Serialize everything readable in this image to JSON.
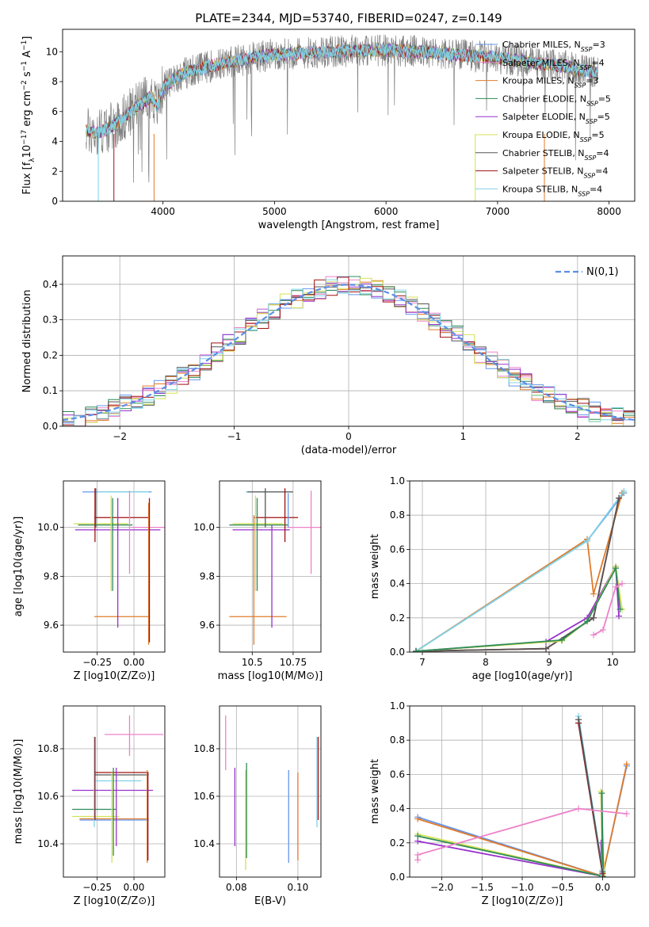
{
  "colors": {
    "chabrier_miles": "#6495ed",
    "salpeter_miles": "#ee82c9",
    "kroupa_miles": "#e07b2a",
    "chabrier_elodie": "#2e8b57",
    "salpeter_elodie": "#9932cc",
    "kroupa_elodie": "#d4e157",
    "chabrier_stelib": "#555555",
    "salpeter_stelib": "#a01010",
    "kroupa_stelib": "#7fd3e6",
    "data": "#7f7f7f",
    "normal": "#5b8fe6"
  },
  "models": [
    {
      "name": "Chabrier MILES",
      "nssp": "3",
      "color_key": "chabrier_miles"
    },
    {
      "name": "Salpeter MILES",
      "nssp": "4",
      "color_key": "salpeter_miles"
    },
    {
      "name": "Kroupa MILES",
      "nssp": "3",
      "color_key": "kroupa_miles"
    },
    {
      "name": "Chabrier ELODIE",
      "nssp": "5",
      "color_key": "chabrier_elodie"
    },
    {
      "name": "Salpeter ELODIE",
      "nssp": "5",
      "color_key": "salpeter_elodie"
    },
    {
      "name": "Kroupa ELODIE",
      "nssp": "5",
      "color_key": "kroupa_elodie"
    },
    {
      "name": "Chabrier STELIB",
      "nssp": "4",
      "color_key": "chabrier_stelib"
    },
    {
      "name": "Salpeter STELIB",
      "nssp": "4",
      "color_key": "salpeter_stelib"
    },
    {
      "name": "Kroupa STELIB",
      "nssp": "4",
      "color_key": "kroupa_stelib"
    }
  ],
  "chart_data": [
    {
      "id": "spectrum",
      "type": "line",
      "title": "PLATE=2344, MJD=53740, FIBERID=0247, z=0.149",
      "xlabel": "wavelength [Angstrom, rest frame]",
      "ylabel": "Flux [f_λ10^-17 erg cm^-2 s^-1 A^-1]",
      "xlim": [
        3100,
        8230
      ],
      "ylim": [
        0,
        11.5
      ],
      "xticks": [
        4000,
        5000,
        6000,
        7000,
        8000
      ],
      "yticks": [
        0,
        2,
        4,
        6,
        8,
        10
      ],
      "legend": "upper-right",
      "continuum": {
        "x": [
          3310,
          3400,
          3500,
          3600,
          3700,
          3800,
          3900,
          3950,
          4000,
          4100,
          4200,
          4400,
          4600,
          4800,
          5000,
          5200,
          5500,
          5800,
          6000,
          6300,
          6600,
          7000,
          7300,
          7600,
          7900
        ],
        "y": [
          4.7,
          4.6,
          4.8,
          5.3,
          5.9,
          6.5,
          7.0,
          6.3,
          7.6,
          8.2,
          8.6,
          9.0,
          9.3,
          9.6,
          9.8,
          9.9,
          10.0,
          10.1,
          10.1,
          10.0,
          9.8,
          9.6,
          9.3,
          9.0,
          8.6
        ]
      }
    },
    {
      "id": "residuals",
      "type": "histogram",
      "xlabel": "(data-model)/error",
      "ylabel": "Normed distribution",
      "xlim": [
        -2.5,
        2.5
      ],
      "ylim": [
        0,
        0.48
      ],
      "xticks": [
        -2,
        -1,
        0,
        1,
        2
      ],
      "yticks": [
        0.0,
        0.1,
        0.2,
        0.3,
        0.4
      ],
      "grid": true,
      "legend": "upper-right",
      "normal_label": "N(0,1)",
      "bin_width": 0.1
    },
    {
      "id": "age_vs_z",
      "type": "errorbar",
      "xlabel": "Z [log10(Z/Z⊙)]",
      "ylabel": "age  [log10(age/yr)]",
      "xlim": [
        -0.48,
        0.21
      ],
      "ylim": [
        9.49,
        10.19
      ],
      "xticks": [
        -0.25,
        0.0
      ],
      "yticks": [
        9.6,
        9.8,
        10.0
      ],
      "grid": true,
      "points": [
        {
          "x": -0.08,
          "xerr": [
            0.27,
            0.2
          ],
          "y": 10.145,
          "yerr": [
            0.0,
            0.0
          ],
          "color_key": "chabrier_miles"
        },
        {
          "x": 0.06,
          "xerr": [
            0.08,
            0.26
          ],
          "y": 10.0,
          "yerr": [
            0.19,
            0.0
          ],
          "color_key": "salpeter_miles"
        },
        {
          "x": -0.1,
          "xerr": [
            0.17,
            0.2
          ],
          "y": 9.635,
          "yerr": [
            0.0,
            0.0
          ],
          "color_key": "kroupa_miles"
        },
        {
          "x": -0.12,
          "xerr": [
            0.26,
            0.11
          ],
          "y": 10.01,
          "yerr": [
            0.0,
            0.0
          ],
          "color_key": "chabrier_elodie"
        },
        {
          "x": -0.15,
          "xerr": [
            0.25,
            0.33
          ],
          "y": 9.99,
          "yerr": [
            0.4,
            0.15
          ],
          "color_key": "salpeter_elodie"
        },
        {
          "x": -0.15,
          "xerr": [
            0.26,
            0.11
          ],
          "y": 10.015,
          "yerr": [
            0.27,
            0.12
          ],
          "color_key": "kroupa_elodie"
        },
        {
          "x": -0.27,
          "xerr": [
            0.0,
            0.0
          ],
          "y": 10.08,
          "yerr": [
            0.14,
            0.07
          ],
          "color_key": "chabrier_stelib"
        },
        {
          "x": -0.1,
          "xerr": [
            0.17,
            0.2
          ],
          "y": 10.04,
          "yerr": [
            0.0,
            0.0
          ],
          "color_key": "salpeter_stelib"
        },
        {
          "x": -0.08,
          "xerr": [
            0.17,
            0.18
          ],
          "y": 10.145,
          "yerr": [
            0.0,
            0.0
          ],
          "color_key": "kroupa_stelib"
        }
      ],
      "vlines": [
        {
          "x": -0.265,
          "ymin": 9.94,
          "ymax": 10.16,
          "color_key": "salpeter_stelib"
        },
        {
          "x": -0.26,
          "ymin": 10.0,
          "ymax": 10.16,
          "color_key": "chabrier_stelib"
        },
        {
          "x": -0.155,
          "ymin": 9.74,
          "ymax": 10.13,
          "color_key": "kroupa_elodie"
        },
        {
          "x": -0.145,
          "ymin": 9.74,
          "ymax": 10.12,
          "color_key": "chabrier_elodie"
        },
        {
          "x": -0.11,
          "ymin": 9.59,
          "ymax": 10.12,
          "color_key": "salpeter_elodie"
        },
        {
          "x": -0.03,
          "ymin": 9.81,
          "ymax": 10.15,
          "color_key": "salpeter_miles"
        },
        {
          "x": 0.1,
          "ymin": 9.52,
          "ymax": 10.1,
          "color_key": "kroupa_miles"
        },
        {
          "x": 0.105,
          "ymin": 9.53,
          "ymax": 10.12,
          "color_key": "salpeter_stelib"
        }
      ]
    },
    {
      "id": "age_vs_mass",
      "type": "errorbar",
      "xlabel": "mass [log10(M/M⊙)]",
      "ylabel": "",
      "xlim": [
        10.3,
        10.92
      ],
      "ylim": [
        9.49,
        10.19
      ],
      "xticks": [
        10.5,
        10.75
      ],
      "yticks": [
        9.6,
        9.8,
        10.0
      ],
      "grid": true,
      "hlines": [
        {
          "y": 10.145,
          "xmin": 10.46,
          "xmax": 10.74,
          "color_key": "kroupa_stelib"
        },
        {
          "y": 10.145,
          "xmin": 10.47,
          "xmax": 10.75,
          "color_key": "chabrier_stelib"
        },
        {
          "y": 10.04,
          "xmin": 10.51,
          "xmax": 10.78,
          "color_key": "salpeter_stelib"
        },
        {
          "y": 10.01,
          "xmin": 10.36,
          "xmax": 10.72,
          "color_key": "chabrier_elodie"
        },
        {
          "y": 10.015,
          "xmin": 10.38,
          "xmax": 10.69,
          "color_key": "kroupa_elodie"
        },
        {
          "y": 9.99,
          "xmin": 10.38,
          "xmax": 10.73,
          "color_key": "salpeter_elodie"
        },
        {
          "y": 10.0,
          "xmin": 10.72,
          "xmax": 10.92,
          "color_key": "salpeter_miles"
        },
        {
          "y": 9.635,
          "xmin": 10.36,
          "xmax": 10.71,
          "color_key": "kroupa_miles"
        }
      ],
      "vlines": [
        {
          "x": 10.51,
          "ymin": 9.52,
          "ymax": 10.05,
          "color_key": "kroupa_miles"
        },
        {
          "x": 10.52,
          "ymin": 9.74,
          "ymax": 10.13,
          "color_key": "kroupa_elodie"
        },
        {
          "x": 10.53,
          "ymin": 9.74,
          "ymax": 10.12,
          "color_key": "chabrier_elodie"
        },
        {
          "x": 10.58,
          "ymin": 10.0,
          "ymax": 10.16,
          "color_key": "chabrier_stelib"
        },
        {
          "x": 10.62,
          "ymin": 9.59,
          "ymax": 10.01,
          "color_key": "salpeter_elodie"
        },
        {
          "x": 10.7,
          "ymin": 9.94,
          "ymax": 10.16,
          "color_key": "salpeter_stelib"
        },
        {
          "x": 10.72,
          "ymin": 10.0,
          "ymax": 10.14,
          "color_key": "chabrier_miles"
        },
        {
          "x": 10.86,
          "ymin": 9.81,
          "ymax": 10.15,
          "color_key": "salpeter_miles"
        }
      ]
    },
    {
      "id": "weight_vs_age",
      "type": "line",
      "xlabel": "age  [log10(age/yr)]",
      "ylabel": "mass weight",
      "xlim": [
        6.8,
        10.35
      ],
      "ylim": [
        0,
        1.0
      ],
      "xticks": [
        7,
        8,
        9,
        10
      ],
      "yticks": [
        0.0,
        0.2,
        0.4,
        0.6,
        0.8,
        1.0
      ],
      "grid": true,
      "series": [
        {
          "color_key": "chabrier_miles",
          "x": [
            6.9,
            9.6,
            10.18
          ],
          "y": [
            0.005,
            0.65,
            0.93
          ]
        },
        {
          "color_key": "kroupa_miles",
          "x": [
            6.9,
            9.6,
            9.7,
            10.15
          ],
          "y": [
            0.005,
            0.66,
            0.34,
            0.93
          ]
        },
        {
          "color_key": "kroupa_stelib",
          "x": [
            6.9,
            9.6,
            10.18
          ],
          "y": [
            0.005,
            0.65,
            0.94
          ]
        },
        {
          "color_key": "salpeter_stelib",
          "x": [
            6.9,
            8.95,
            9.7,
            10.1
          ],
          "y": [
            0.005,
            0.02,
            0.2,
            0.9
          ]
        },
        {
          "color_key": "chabrier_stelib",
          "x": [
            6.9,
            8.95,
            9.7,
            10.1
          ],
          "y": [
            0.005,
            0.02,
            0.2,
            0.9
          ]
        },
        {
          "color_key": "salpeter_elodie",
          "x": [
            6.9,
            8.95,
            9.6,
            10.05,
            10.1
          ],
          "y": [
            0.005,
            0.06,
            0.2,
            0.5,
            0.21
          ]
        },
        {
          "color_key": "kroupa_elodie",
          "x": [
            6.9,
            9.2,
            9.6,
            10.05,
            10.15
          ],
          "y": [
            0.005,
            0.065,
            0.18,
            0.5,
            0.25
          ]
        },
        {
          "color_key": "chabrier_elodie",
          "x": [
            6.9,
            9.2,
            9.6,
            10.05,
            10.12
          ],
          "y": [
            0.005,
            0.07,
            0.18,
            0.49,
            0.25
          ]
        },
        {
          "color_key": "salpeter_miles",
          "x": [
            9.7,
            9.85,
            10.05,
            10.15
          ],
          "y": [
            0.1,
            0.13,
            0.38,
            0.4
          ]
        }
      ]
    },
    {
      "id": "mass_vs_z",
      "type": "errorbar",
      "xlabel": "Z [log10(Z/Z⊙)]",
      "ylabel": "mass [log10(M/M⊙)]",
      "xlim": [
        -0.48,
        0.21
      ],
      "ylim": [
        10.26,
        10.98
      ],
      "xticks": [
        -0.25,
        0.0
      ],
      "yticks": [
        10.4,
        10.6,
        10.8
      ],
      "grid": true,
      "hlines": [
        {
          "y": 10.86,
          "xmin": -0.2,
          "xmax": 0.2,
          "color_key": "salpeter_miles"
        },
        {
          "y": 10.7,
          "xmin": -0.27,
          "xmax": 0.1,
          "color_key": "salpeter_stelib"
        },
        {
          "y": 10.69,
          "xmin": -0.27,
          "xmax": 0.1,
          "color_key": "chabrier_stelib"
        },
        {
          "y": 10.665,
          "xmin": -0.26,
          "xmax": 0.05,
          "color_key": "kroupa_stelib"
        },
        {
          "y": 10.625,
          "xmin": -0.42,
          "xmax": 0.13,
          "color_key": "salpeter_elodie"
        },
        {
          "y": 10.545,
          "xmin": -0.42,
          "xmax": -0.12,
          "color_key": "chabrier_elodie"
        },
        {
          "y": 10.515,
          "xmin": -0.42,
          "xmax": -0.1,
          "color_key": "kroupa_elodie"
        },
        {
          "y": 10.505,
          "xmin": -0.37,
          "xmax": 0.1,
          "color_key": "kroupa_miles"
        },
        {
          "y": 10.5,
          "xmin": -0.37,
          "xmax": 0.1,
          "color_key": "chabrier_miles"
        }
      ],
      "vlines": [
        {
          "x": -0.27,
          "ymin": 10.47,
          "ymax": 10.85,
          "color_key": "kroupa_stelib"
        },
        {
          "x": -0.265,
          "ymin": 10.5,
          "ymax": 10.85,
          "color_key": "salpeter_stelib"
        },
        {
          "x": -0.15,
          "ymin": 10.32,
          "ymax": 10.7,
          "color_key": "kroupa_elodie"
        },
        {
          "x": -0.14,
          "ymin": 10.35,
          "ymax": 10.72,
          "color_key": "chabrier_elodie"
        },
        {
          "x": -0.12,
          "ymin": 10.39,
          "ymax": 10.72,
          "color_key": "salpeter_elodie"
        },
        {
          "x": -0.03,
          "ymin": 10.77,
          "ymax": 10.94,
          "color_key": "salpeter_miles"
        },
        {
          "x": 0.09,
          "ymin": 10.32,
          "ymax": 10.71,
          "color_key": "kroupa_miles"
        },
        {
          "x": 0.095,
          "ymin": 10.33,
          "ymax": 10.7,
          "color_key": "salpeter_stelib"
        }
      ]
    },
    {
      "id": "mass_vs_ebv",
      "type": "errorbar",
      "xlabel": "E(B-V)",
      "ylabel": "",
      "xlim": [
        0.0745,
        0.1075
      ],
      "ylim": [
        10.26,
        10.98
      ],
      "xticks": [
        0.08,
        0.1
      ],
      "yticks": [
        10.4,
        10.6,
        10.8
      ],
      "grid": true,
      "vlines": [
        {
          "x": 0.0765,
          "ymin": 10.71,
          "ymax": 10.94,
          "color_key": "salpeter_miles"
        },
        {
          "x": 0.0795,
          "ymin": 10.39,
          "ymax": 10.72,
          "color_key": "salpeter_elodie"
        },
        {
          "x": 0.083,
          "ymin": 10.29,
          "ymax": 10.71,
          "color_key": "kroupa_elodie"
        },
        {
          "x": 0.0833,
          "ymin": 10.34,
          "ymax": 10.74,
          "color_key": "chabrier_elodie"
        },
        {
          "x": 0.097,
          "ymin": 10.32,
          "ymax": 10.71,
          "color_key": "chabrier_miles"
        },
        {
          "x": 0.1,
          "ymin": 10.33,
          "ymax": 10.7,
          "color_key": "kroupa_miles"
        },
        {
          "x": 0.1062,
          "ymin": 10.47,
          "ymax": 10.85,
          "color_key": "kroupa_stelib"
        },
        {
          "x": 0.1066,
          "ymin": 10.5,
          "ymax": 10.85,
          "color_key": "salpeter_stelib"
        }
      ]
    },
    {
      "id": "weight_vs_z",
      "type": "line",
      "xlabel": "Z [log10(Z/Z⊙)]",
      "ylabel": "mass weight",
      "xlim": [
        -2.4,
        0.4
      ],
      "ylim": [
        0,
        1.0
      ],
      "xticks": [
        -2.0,
        -1.5,
        -1.0,
        -0.5,
        0.0
      ],
      "yticks": [
        0.0,
        0.2,
        0.4,
        0.6,
        0.8,
        1.0
      ],
      "grid": true,
      "series": [
        {
          "color_key": "chabrier_miles",
          "x": [
            -2.3,
            0.0,
            0.3
          ],
          "y": [
            0.35,
            0.005,
            0.65
          ]
        },
        {
          "color_key": "kroupa_miles",
          "x": [
            -2.3,
            0.0,
            0.3
          ],
          "y": [
            0.34,
            0.005,
            0.66
          ]
        },
        {
          "color_key": "salpeter_elodie",
          "x": [
            -2.3,
            0.0,
            -0.02,
            0.0
          ],
          "y": [
            0.21,
            0.005,
            0.2,
            0.0
          ]
        },
        {
          "color_key": "kroupa_elodie",
          "x": [
            -2.3,
            0.0,
            -0.02,
            0.02
          ],
          "y": [
            0.25,
            0.005,
            0.5,
            0.0
          ]
        },
        {
          "color_key": "chabrier_elodie",
          "x": [
            -2.3,
            0.0,
            -0.01,
            0.01
          ],
          "y": [
            0.24,
            0.005,
            0.49,
            0.0
          ]
        },
        {
          "color_key": "kroupa_stelib",
          "x": [
            -0.3,
            0.0,
            -0.02
          ],
          "y": [
            0.94,
            0.04,
            0.0
          ]
        },
        {
          "color_key": "salpeter_stelib",
          "x": [
            -0.3,
            0.0
          ],
          "y": [
            0.9,
            0.02
          ]
        },
        {
          "color_key": "chabrier_stelib",
          "x": [
            -0.3,
            0.0
          ],
          "y": [
            0.92,
            0.03
          ]
        },
        {
          "color_key": "salpeter_miles",
          "x": [
            -2.3,
            -2.3,
            -0.3,
            0.3
          ],
          "y": [
            0.1,
            0.13,
            0.4,
            0.37
          ]
        }
      ]
    }
  ]
}
